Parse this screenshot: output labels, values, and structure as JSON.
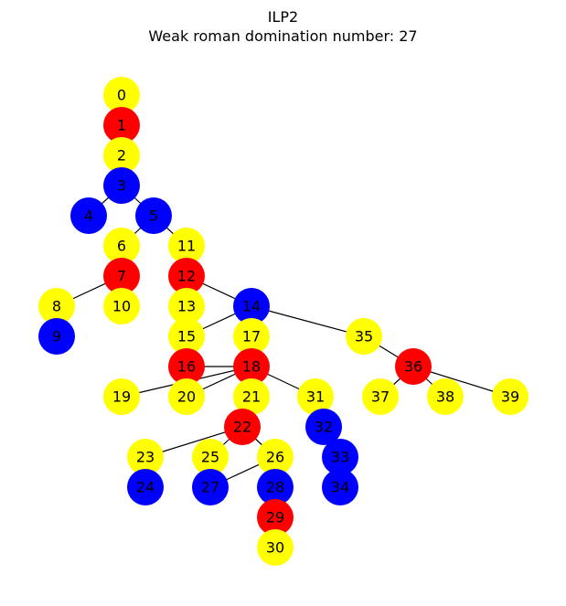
{
  "title": "ILP2",
  "subtitle": "Weak roman domination number: 27",
  "colors": {
    "yellow": "#ffff00",
    "red": "#ff0000",
    "blue": "#0000ff"
  },
  "nodes": [
    {
      "id": "0",
      "color": "yellow"
    },
    {
      "id": "1",
      "color": "red"
    },
    {
      "id": "2",
      "color": "yellow"
    },
    {
      "id": "3",
      "color": "blue"
    },
    {
      "id": "4",
      "color": "blue"
    },
    {
      "id": "5",
      "color": "blue"
    },
    {
      "id": "6",
      "color": "yellow"
    },
    {
      "id": "7",
      "color": "red"
    },
    {
      "id": "8",
      "color": "yellow"
    },
    {
      "id": "9",
      "color": "blue"
    },
    {
      "id": "10",
      "color": "yellow"
    },
    {
      "id": "11",
      "color": "yellow"
    },
    {
      "id": "12",
      "color": "red"
    },
    {
      "id": "13",
      "color": "yellow"
    },
    {
      "id": "14",
      "color": "blue"
    },
    {
      "id": "15",
      "color": "yellow"
    },
    {
      "id": "16",
      "color": "red"
    },
    {
      "id": "17",
      "color": "yellow"
    },
    {
      "id": "18",
      "color": "red"
    },
    {
      "id": "19",
      "color": "yellow"
    },
    {
      "id": "20",
      "color": "yellow"
    },
    {
      "id": "21",
      "color": "yellow"
    },
    {
      "id": "22",
      "color": "red"
    },
    {
      "id": "23",
      "color": "yellow"
    },
    {
      "id": "24",
      "color": "blue"
    },
    {
      "id": "25",
      "color": "yellow"
    },
    {
      "id": "26",
      "color": "yellow"
    },
    {
      "id": "27",
      "color": "blue"
    },
    {
      "id": "28",
      "color": "blue"
    },
    {
      "id": "29",
      "color": "red"
    },
    {
      "id": "30",
      "color": "yellow"
    },
    {
      "id": "31",
      "color": "yellow"
    },
    {
      "id": "32",
      "color": "blue"
    },
    {
      "id": "33",
      "color": "blue"
    },
    {
      "id": "34",
      "color": "blue"
    },
    {
      "id": "35",
      "color": "yellow"
    },
    {
      "id": "36",
      "color": "red"
    },
    {
      "id": "37",
      "color": "yellow"
    },
    {
      "id": "38",
      "color": "yellow"
    },
    {
      "id": "39",
      "color": "yellow"
    }
  ],
  "edges": [
    [
      "0",
      "1"
    ],
    [
      "1",
      "2"
    ],
    [
      "2",
      "3"
    ],
    [
      "3",
      "4"
    ],
    [
      "3",
      "5"
    ],
    [
      "5",
      "6"
    ],
    [
      "5",
      "11"
    ],
    [
      "6",
      "7"
    ],
    [
      "7",
      "8"
    ],
    [
      "7",
      "10"
    ],
    [
      "8",
      "9"
    ],
    [
      "11",
      "12"
    ],
    [
      "12",
      "13"
    ],
    [
      "12",
      "14"
    ],
    [
      "13",
      "15"
    ],
    [
      "14",
      "15"
    ],
    [
      "14",
      "17"
    ],
    [
      "14",
      "35"
    ],
    [
      "15",
      "16"
    ],
    [
      "16",
      "18"
    ],
    [
      "17",
      "18"
    ],
    [
      "18",
      "19"
    ],
    [
      "18",
      "20"
    ],
    [
      "18",
      "21"
    ],
    [
      "18",
      "31"
    ],
    [
      "21",
      "22"
    ],
    [
      "22",
      "23"
    ],
    [
      "22",
      "25"
    ],
    [
      "22",
      "26"
    ],
    [
      "23",
      "24"
    ],
    [
      "25",
      "27"
    ],
    [
      "26",
      "27"
    ],
    [
      "26",
      "28"
    ],
    [
      "28",
      "29"
    ],
    [
      "29",
      "30"
    ],
    [
      "31",
      "32"
    ],
    [
      "32",
      "33"
    ],
    [
      "33",
      "34"
    ],
    [
      "35",
      "36"
    ],
    [
      "36",
      "37"
    ],
    [
      "36",
      "38"
    ],
    [
      "36",
      "39"
    ]
  ]
}
